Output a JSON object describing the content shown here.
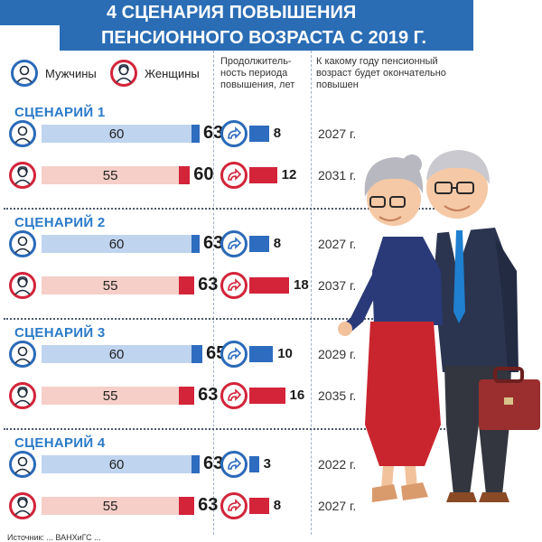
{
  "title_line1": "4 СЦЕНАРИЯ ПОВЫШЕНИЯ",
  "title_line2": "ПЕНСИОННОГО ВОЗРАСТА С 2019 Г.",
  "legend": {
    "men": "Мужчины",
    "women": "Женщины"
  },
  "col_headers": {
    "duration": [
      "Продолжитель-",
      "ность периода",
      "повышения, лет"
    ],
    "year": [
      "К какому году пенсионный",
      "возраст будет окончательно",
      "повышен"
    ]
  },
  "colors": {
    "men": "#2e6cbf",
    "men_light": "#bfd4ef",
    "women": "#d3243a",
    "women_light": "#f5cfc8",
    "header": "#2a6db5"
  },
  "icons": {
    "men": "man-avatar-icon",
    "women": "woman-avatar-icon",
    "period": "curved-arrow-icon"
  },
  "footer": "Источник: ... ВАНХиГС ...",
  "chart_data": {
    "type": "bar",
    "scenarios": [
      {
        "title": "СЦЕНАРИЙ 1",
        "men": {
          "current_age": "60",
          "new_age": "63",
          "years": "8",
          "final_year": "2027 г."
        },
        "women": {
          "current_age": "55",
          "new_age": "60",
          "years": "12",
          "final_year": "2031 г."
        }
      },
      {
        "title": "СЦЕНАРИЙ 2",
        "men": {
          "current_age": "60",
          "new_age": "63",
          "years": "8",
          "final_year": "2027 г."
        },
        "women": {
          "current_age": "55",
          "new_age": "63",
          "years": "18",
          "final_year": "2037 г."
        }
      },
      {
        "title": "СЦЕНАРИЙ 3",
        "men": {
          "current_age": "60",
          "new_age": "65",
          "years": "10",
          "final_year": "2029 г."
        },
        "women": {
          "current_age": "55",
          "new_age": "63",
          "years": "16",
          "final_year": "2035 г."
        }
      },
      {
        "title": "СЦЕНАРИЙ 4",
        "men": {
          "current_age": "60",
          "new_age": "63",
          "years": "3",
          "final_year": "2022 г."
        },
        "women": {
          "current_age": "55",
          "new_age": "63",
          "years": "8",
          "final_year": "2027 г."
        }
      }
    ]
  }
}
